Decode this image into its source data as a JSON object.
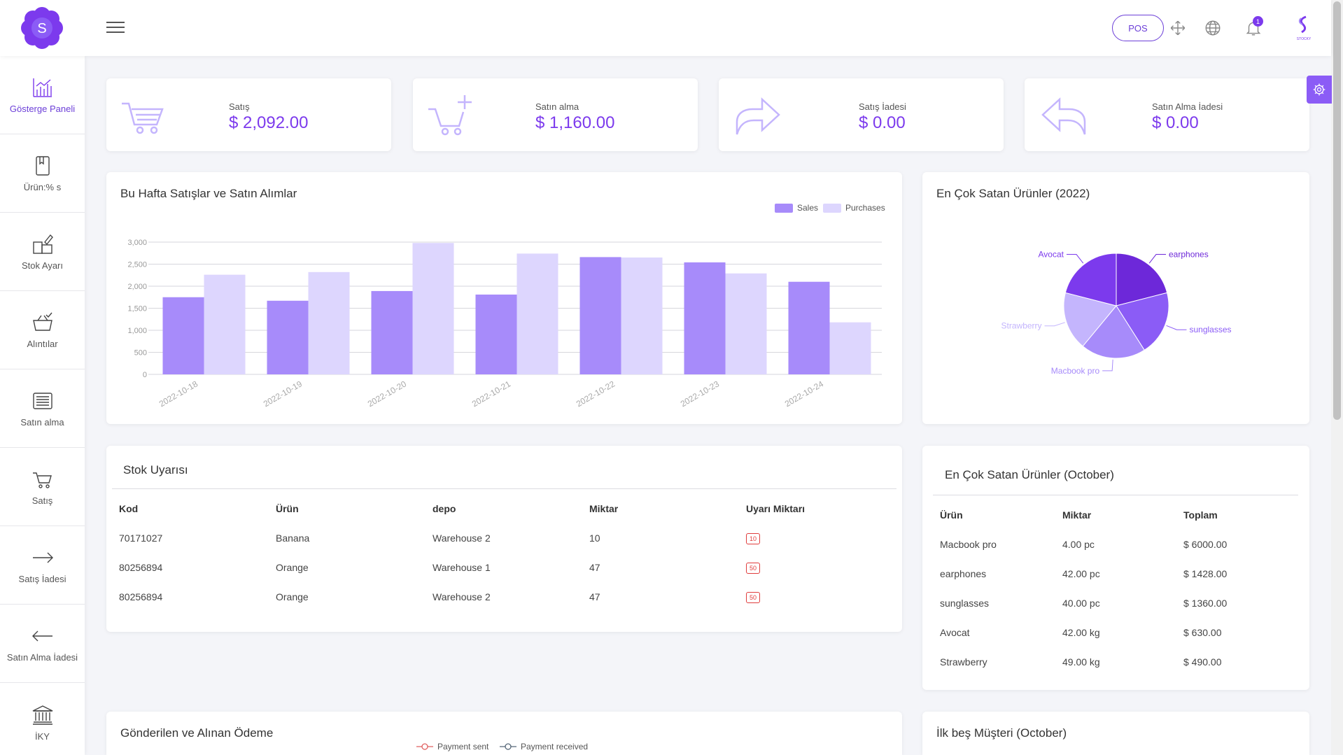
{
  "header": {
    "pos_label": "POS",
    "notification_count": "1",
    "brand_caption": "STOCKY"
  },
  "logo_letter": "S",
  "sidebar": {
    "items": [
      {
        "label": "Gösterge Paneli",
        "icon": "chart-icon",
        "active": true
      },
      {
        "label": "Ürün:% s",
        "icon": "book-icon"
      },
      {
        "label": "Stok Ayarı",
        "icon": "stock-adjust-icon"
      },
      {
        "label": "Alıntılar",
        "icon": "basket-icon"
      },
      {
        "label": "Satın alma",
        "icon": "receipt-icon"
      },
      {
        "label": "Satış",
        "icon": "cart-icon"
      },
      {
        "label": "Satış İadesi",
        "icon": "arrow-right-icon"
      },
      {
        "label": "Satın Alma İadesi",
        "icon": "arrow-left-icon"
      },
      {
        "label": "İKY",
        "icon": "bank-icon"
      }
    ]
  },
  "stats": [
    {
      "label": "Satış",
      "value": "$ 2,092.00",
      "icon": "cart-icon"
    },
    {
      "label": "Satın alma",
      "value": "$ 1,160.00",
      "icon": "cart-plus-icon"
    },
    {
      "label": "Satış İadesi",
      "value": "$ 0.00",
      "icon": "forward-arrow-icon"
    },
    {
      "label": "Satın Alma İadesi",
      "value": "$ 0.00",
      "icon": "reply-arrow-icon"
    }
  ],
  "weekly_chart": {
    "title": "Bu Hafta Satışlar ve Satın Alımlar",
    "legend": [
      "Sales",
      "Purchases"
    ]
  },
  "pie_chart": {
    "title": "En Çok Satan Ürünler (2022)"
  },
  "chart_data": [
    {
      "type": "bar",
      "title": "Bu Hafta Satışlar ve Satın Alımlar",
      "categories": [
        "2022-10-18",
        "2022-10-19",
        "2022-10-20",
        "2022-10-21",
        "2022-10-22",
        "2022-10-23",
        "2022-10-24"
      ],
      "series": [
        {
          "name": "Sales",
          "values": [
            1750,
            1670,
            1890,
            1810,
            2660,
            2540,
            2100
          ],
          "color": "#a78bfa"
        },
        {
          "name": "Purchases",
          "values": [
            2260,
            2320,
            2980,
            2740,
            2650,
            2290,
            1180
          ],
          "color": "#ddd6fe"
        }
      ],
      "yticks": [
        "0",
        "500",
        "1,000",
        "1,500",
        "2,000",
        "2,500",
        "3,000"
      ],
      "ylim": [
        0,
        3000
      ],
      "grid": true,
      "legend_position": "top-right"
    },
    {
      "type": "pie",
      "title": "En Çok Satan Ürünler (2022)",
      "slices": [
        {
          "label": "earphones",
          "value": 21,
          "color": "#6d28d9"
        },
        {
          "label": "sunglasses",
          "value": 20,
          "color": "#8b5cf6"
        },
        {
          "label": "Macbook pro",
          "value": 20,
          "color": "#a78bfa"
        },
        {
          "label": "Strawberry",
          "value": 18,
          "color": "#c4b5fd"
        },
        {
          "label": "Avocat",
          "value": 21,
          "color": "#7c3aed"
        }
      ]
    }
  ],
  "stock_alert": {
    "title": "Stok Uyarısı",
    "columns": [
      "Kod",
      "Ürün",
      "depo",
      "Miktar",
      "Uyarı Miktarı"
    ],
    "rows": [
      {
        "code": "70171027",
        "product": "Banana",
        "warehouse": "Warehouse 2",
        "qty": "10",
        "alert": "10"
      },
      {
        "code": "80256894",
        "product": "Orange",
        "warehouse": "Warehouse 1",
        "qty": "47",
        "alert": "50"
      },
      {
        "code": "80256894",
        "product": "Orange",
        "warehouse": "Warehouse 2",
        "qty": "47",
        "alert": "50"
      }
    ]
  },
  "top_products": {
    "title": "En Çok Satan Ürünler (October)",
    "columns": [
      "Ürün",
      "Miktar",
      "Toplam"
    ],
    "rows": [
      {
        "product": "Macbook pro",
        "qty": "4.00 pc",
        "total": "$ 6000.00"
      },
      {
        "product": "earphones",
        "qty": "42.00 pc",
        "total": "$ 1428.00"
      },
      {
        "product": "sunglasses",
        "qty": "40.00 pc",
        "total": "$ 1360.00"
      },
      {
        "product": "Avocat",
        "qty": "42.00 kg",
        "total": "$ 630.00"
      },
      {
        "product": "Strawberry",
        "qty": "49.00 kg",
        "total": "$ 490.00"
      }
    ]
  },
  "payments": {
    "title": "Gönderilen ve Alınan Ödeme",
    "legend": [
      "Payment sent",
      "Payment received"
    ]
  },
  "top_customers": {
    "title": "İlk beş Müşteri (October)"
  }
}
